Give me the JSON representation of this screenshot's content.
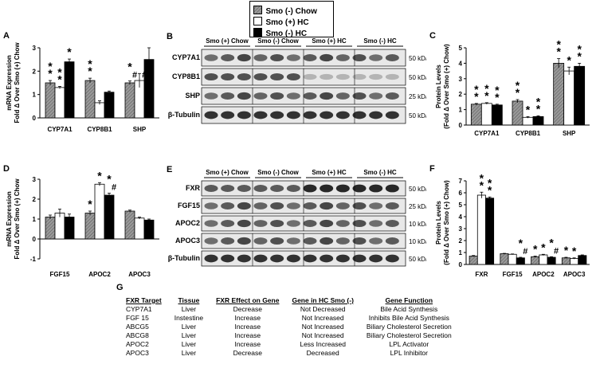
{
  "legend": {
    "items": [
      {
        "label": "Smo (-) Chow",
        "pattern": "hatched-gray"
      },
      {
        "label": "Smo (+) HC",
        "pattern": "white"
      },
      {
        "label": "Smo (-) HC",
        "pattern": "black"
      }
    ]
  },
  "colors": {
    "gray": "#8c8c8c",
    "black": "#000000",
    "white": "#ffffff"
  },
  "panel_labels": {
    "a": "A",
    "b": "B",
    "c": "C",
    "d": "D",
    "e": "E",
    "f": "F",
    "g": "G"
  },
  "chart_data": [
    {
      "panel": "A",
      "type": "bar",
      "ylabel": "mRNA Expression\nFold Δ Over Smo (+) Chow",
      "categories": [
        "CYP7A1",
        "CYP8B1",
        "SHP"
      ],
      "ylim": [
        0,
        3
      ],
      "yticks": [
        0,
        1,
        2,
        3
      ],
      "series": [
        {
          "name": "Smo (-) Chow",
          "values": [
            1.5,
            1.6,
            1.5
          ],
          "err": [
            0.1,
            0.1,
            0.08
          ]
        },
        {
          "name": "Smo (+) HC",
          "values": [
            1.3,
            0.65,
            1.6
          ],
          "err": [
            0.05,
            0.08,
            0.3
          ]
        },
        {
          "name": "Smo (-) HC",
          "values": [
            2.4,
            1.1,
            2.5
          ],
          "err": [
            0.12,
            0.05,
            0.5
          ]
        }
      ],
      "annotations": [
        [
          "**",
          "**",
          "*#"
        ],
        [
          "**",
          "",
          "#"
        ],
        [
          "*",
          "",
          ""
        ]
      ]
    },
    {
      "panel": "C",
      "type": "bar",
      "ylabel": "Protein Levels\n(Fold Δ Over Smo (+) Chow)",
      "categories": [
        "CYP7A1",
        "CYP8B1",
        "SHP"
      ],
      "ylim": [
        0,
        5
      ],
      "yticks": [
        0,
        1,
        2,
        3,
        4,
        5
      ],
      "series": [
        {
          "name": "Smo (-) Chow",
          "values": [
            1.35,
            1.55,
            4.0
          ],
          "err": [
            0.05,
            0.1,
            0.3
          ]
        },
        {
          "name": "Smo (+) HC",
          "values": [
            1.4,
            0.5,
            3.5
          ],
          "err": [
            0.05,
            0.05,
            0.25
          ]
        },
        {
          "name": "Smo (-) HC",
          "values": [
            1.3,
            0.55,
            3.8
          ],
          "err": [
            0.05,
            0.05,
            0.2
          ]
        }
      ],
      "annotations": [
        [
          "**",
          "**",
          "**"
        ],
        [
          "**",
          "*",
          "*"
        ],
        [
          "**",
          "**",
          "**"
        ]
      ]
    },
    {
      "panel": "D",
      "type": "bar",
      "ylabel": "mRNA Expression\nFold Δ Over Smo (+) Chow",
      "categories": [
        "FGF15",
        "APOC2",
        "APOC3"
      ],
      "ylim": [
        -1,
        3
      ],
      "yticks": [
        -1,
        0,
        1,
        2,
        3
      ],
      "series": [
        {
          "name": "Smo (-) Chow",
          "values": [
            1.1,
            1.3,
            1.4
          ],
          "err": [
            0.1,
            0.1,
            0.05
          ]
        },
        {
          "name": "Smo (+) HC",
          "values": [
            1.3,
            2.75,
            1.05
          ],
          "err": [
            0.2,
            0.08,
            0.05
          ]
        },
        {
          "name": "Smo (-) HC",
          "values": [
            1.1,
            2.2,
            0.95
          ],
          "err": [
            0.15,
            0.1,
            0.05
          ]
        }
      ],
      "annotations": [
        [
          "",
          "*",
          ""
        ],
        [
          "",
          "*",
          ""
        ],
        [
          "",
          "*#",
          ""
        ]
      ]
    },
    {
      "panel": "F",
      "type": "bar",
      "ylabel": "Protein Levels\n(Fold Δ Over Smo (+) Chow)",
      "categories": [
        "FXR",
        "FGF15",
        "APOC2",
        "APOC3"
      ],
      "ylim": [
        0,
        7
      ],
      "yticks": [
        0,
        1,
        2,
        3,
        4,
        5,
        6,
        7
      ],
      "series": [
        {
          "name": "Smo (-) Chow",
          "values": [
            0.7,
            0.9,
            0.65,
            0.55
          ],
          "err": [
            0.05,
            0.03,
            0.05,
            0.05
          ]
        },
        {
          "name": "Smo (+) HC",
          "values": [
            5.8,
            0.85,
            0.8,
            0.5
          ],
          "err": [
            0.25,
            0.03,
            0.05,
            0.05
          ]
        },
        {
          "name": "Smo (-) HC",
          "values": [
            5.55,
            0.55,
            0.6,
            0.75
          ],
          "err": [
            0.1,
            0.05,
            0.05,
            0.05
          ]
        }
      ],
      "annotations": [
        [
          "",
          "",
          "*",
          "*"
        ],
        [
          "**",
          "",
          "*",
          "*"
        ],
        [
          "**",
          "*#",
          "*#",
          ""
        ]
      ]
    }
  ],
  "blot_b": {
    "groups": [
      "Smo (+) Chow",
      "Smo (-) Chow",
      "Smo (+) HC",
      "Smo (-) HC"
    ],
    "rows": [
      {
        "label": "CYP7A1",
        "kda": "50 kDa"
      },
      {
        "label": "CYP8B1",
        "kda": "50 kDa"
      },
      {
        "label": "SHP",
        "kda": "25 kDa"
      },
      {
        "label": "β-Tubulin",
        "kda": "50 kDa"
      }
    ]
  },
  "blot_e": {
    "groups": [
      "Smo (+) Chow",
      "Smo (-) Chow",
      "Smo (+) HC",
      "Smo (-) HC"
    ],
    "rows": [
      {
        "label": "FXR",
        "kda": "50 kDa"
      },
      {
        "label": "FGF15",
        "kda": "25 kDa"
      },
      {
        "label": "APOC2",
        "kda": "10 kDa"
      },
      {
        "label": "APOC3",
        "kda": "10 kDa"
      },
      {
        "label": "β-Tubulin",
        "kda": "50 kDa"
      }
    ]
  },
  "table_g": {
    "headers": [
      "FXR Target",
      "Tissue",
      "FXR Effect on Gene",
      "Gene in HC Smo (-)",
      "Gene Function"
    ],
    "rows": [
      [
        "CYP7A1",
        "Liver",
        "Decrease",
        "Not Decreased",
        "Bile Acid Synthesis"
      ],
      [
        "FGF 15",
        "Instestine",
        "Increase",
        "Not Increased",
        "Inhibits Bile Acid Synthesis"
      ],
      [
        "ABCG5",
        "Liver",
        "Increase",
        "Not Increased",
        "Biliary Cholesterol Secretion"
      ],
      [
        "ABCG8",
        "Liver",
        "Increase",
        "Not Increased",
        "Biliary Cholesterol Secretion"
      ],
      [
        "APOC2",
        "Liver",
        "Increase",
        "Less Increased",
        "LPL Activator"
      ],
      [
        "APOC3",
        "Liver",
        "Decrease",
        "Decreased",
        "LPL Inhibitor"
      ]
    ]
  }
}
